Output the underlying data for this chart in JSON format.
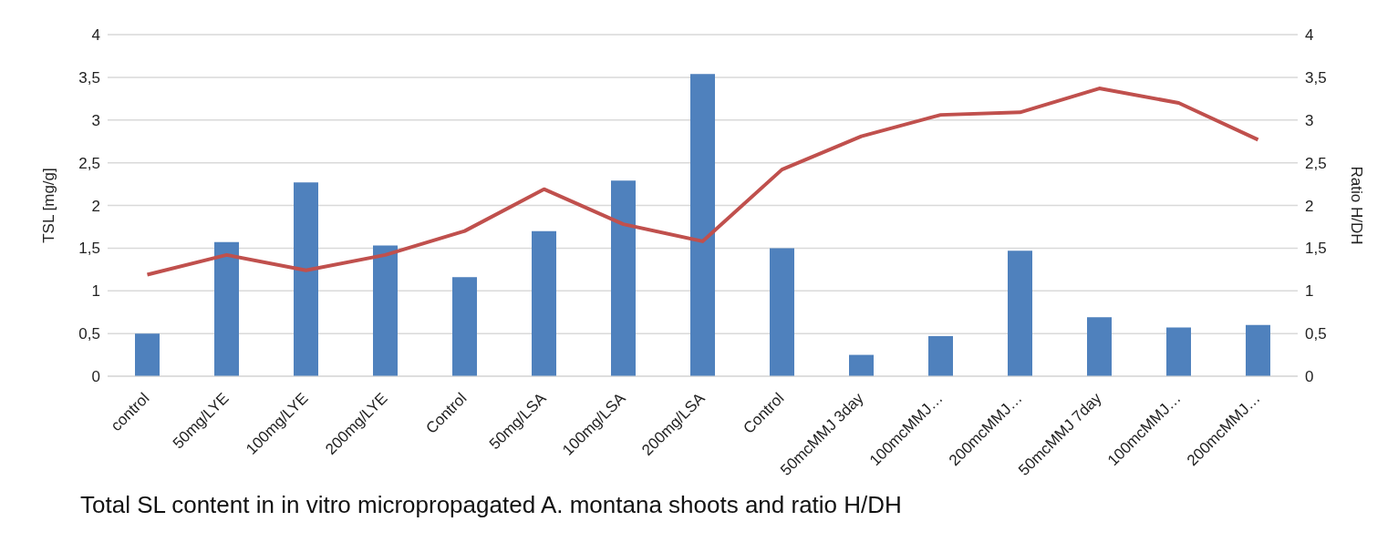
{
  "chart_data": {
    "type": "bar",
    "title": "Total SL content in in vitro micropropagated A. montana shoots and ratio H/DH",
    "ylabel": "TSL [mg/g]",
    "y2label": "Ratio H/DH",
    "categories": [
      "control",
      "50mg/LYE",
      "100mg/LYE",
      "200mg/LYE",
      "Control",
      "50mg/LSA",
      "100mg/LSA",
      "200mg/LSA",
      "Control",
      "50mcMMJ 3day",
      "100mcMMJ…",
      "200mcMMJ…",
      "50mcMMJ 7day",
      "100mcMMJ…",
      "200mcMMJ…"
    ],
    "series": [
      {
        "color": "#4f81bd",
        "values": [
          0.5,
          1.57,
          2.27,
          1.53,
          1.16,
          1.7,
          2.29,
          3.54,
          1.5,
          0.25,
          0.47,
          1.47,
          0.69,
          0.57,
          0.6
        ]
      },
      {
        "type": "line",
        "axis": "y2",
        "color": "#c0504d",
        "values": [
          1.19,
          1.42,
          1.24,
          1.42,
          1.7,
          2.19,
          1.78,
          1.58,
          2.42,
          2.81,
          3.06,
          3.09,
          3.37,
          3.2,
          2.77
        ]
      }
    ],
    "ylim": [
      0,
      4
    ],
    "yticks": [
      0,
      {
        "value": 0.5,
        "label": "0,5"
      },
      1,
      {
        "value": 1.5,
        "label": "1,5"
      },
      2,
      {
        "value": 2.5,
        "label": "2,5"
      },
      3,
      {
        "value": 3.5,
        "label": "3,5"
      },
      4
    ],
    "y2lim": [
      0,
      4
    ],
    "y2ticks": [
      0,
      {
        "value": 0.5,
        "label": "0,5"
      },
      1,
      {
        "value": 1.5,
        "label": "1,5"
      },
      2,
      {
        "value": 2.5,
        "label": "2,5"
      },
      3,
      {
        "value": 3.5,
        "label": "3,5"
      },
      4
    ],
    "grid": "y",
    "legend": false,
    "marker": "none",
    "line_style": "solid"
  }
}
